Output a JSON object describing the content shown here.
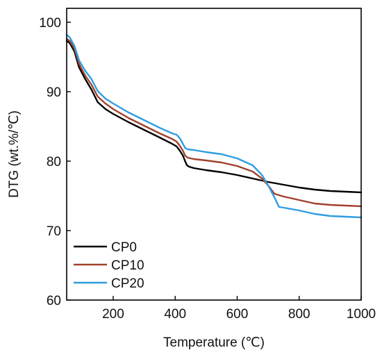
{
  "chart_data": {
    "type": "line",
    "title": "",
    "xlabel": "Temperature (℃)",
    "ylabel": "DTG (wt.%/℃)",
    "xlim": [
      50,
      1000
    ],
    "ylim": [
      60,
      102
    ],
    "xticks": [
      200,
      400,
      600,
      800,
      1000
    ],
    "yticks": [
      60,
      70,
      80,
      90,
      100
    ],
    "grid": false,
    "legend_position": "bottom-left",
    "series": [
      {
        "name": "CP0",
        "color": "#000000",
        "x": [
          50,
          60,
          75,
          90,
          110,
          130,
          150,
          175,
          200,
          250,
          300,
          350,
          390,
          405,
          415,
          425,
          432,
          438,
          445,
          460,
          500,
          550,
          600,
          650,
          700,
          750,
          800,
          850,
          900,
          950,
          1000
        ],
        "y": [
          97.3,
          97.0,
          95.8,
          93.5,
          91.8,
          90.3,
          88.5,
          87.5,
          86.8,
          85.6,
          84.5,
          83.4,
          82.5,
          82.1,
          81.5,
          80.8,
          80.0,
          79.4,
          79.2,
          79.0,
          78.7,
          78.4,
          78.0,
          77.5,
          77.0,
          76.6,
          76.2,
          75.9,
          75.7,
          75.6,
          75.5
        ]
      },
      {
        "name": "CP10",
        "color": "#a0422c",
        "x": [
          50,
          60,
          75,
          90,
          110,
          130,
          150,
          175,
          200,
          250,
          300,
          350,
          390,
          405,
          415,
          425,
          432,
          440,
          460,
          500,
          550,
          600,
          650,
          680,
          700,
          720,
          750,
          800,
          850,
          900,
          950,
          1000
        ],
        "y": [
          97.6,
          97.3,
          96.2,
          94.0,
          92.3,
          91.0,
          89.3,
          88.3,
          87.5,
          86.2,
          85.1,
          84.0,
          83.2,
          82.8,
          82.2,
          81.5,
          80.8,
          80.5,
          80.3,
          80.1,
          79.8,
          79.3,
          78.5,
          77.5,
          76.5,
          75.3,
          74.9,
          74.4,
          73.9,
          73.7,
          73.6,
          73.5
        ]
      },
      {
        "name": "CP20",
        "color": "#2f9de0",
        "x": [
          50,
          60,
          75,
          90,
          110,
          130,
          150,
          175,
          200,
          250,
          300,
          350,
          390,
          405,
          415,
          425,
          432,
          440,
          460,
          500,
          550,
          600,
          650,
          680,
          700,
          720,
          735,
          750,
          800,
          850,
          900,
          950,
          1000
        ],
        "y": [
          98.2,
          97.8,
          96.6,
          94.5,
          93.0,
          91.8,
          90.1,
          89.0,
          88.3,
          87.0,
          85.9,
          84.8,
          84.0,
          83.8,
          83.3,
          82.5,
          81.9,
          81.7,
          81.6,
          81.3,
          81.0,
          80.4,
          79.4,
          78.0,
          76.5,
          74.8,
          73.4,
          73.3,
          72.9,
          72.4,
          72.1,
          72.0,
          71.9
        ]
      }
    ]
  }
}
